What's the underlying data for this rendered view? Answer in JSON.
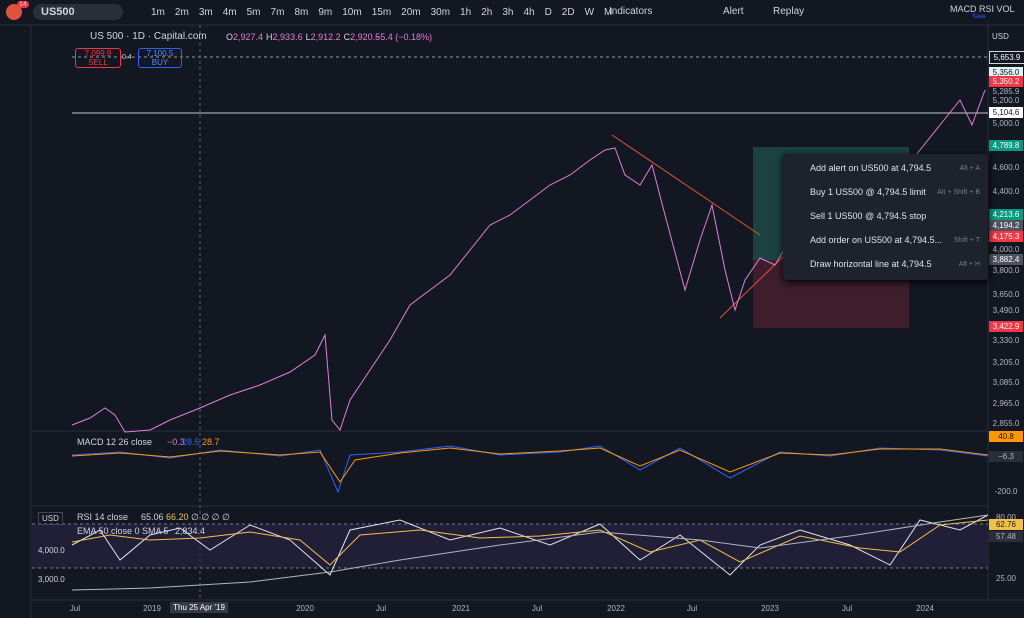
{
  "toolbar": {
    "badge": "14",
    "symbol": "US500",
    "intervals": [
      "1m",
      "2m",
      "3m",
      "4m",
      "5m",
      "7m",
      "8m",
      "9m",
      "10m",
      "15m",
      "20m",
      "30m",
      "1h",
      "2h",
      "3h",
      "4h",
      "D",
      "2D",
      "W",
      "M"
    ],
    "indicators": "Indicators",
    "alert": "Alert",
    "replay": "Replay",
    "layout_name": "MACD RSI VOL",
    "save": "Save"
  },
  "legend": {
    "title": "US 500 · 1D · Capital.com",
    "ohlc": [
      {
        "letter": "O",
        "value": "2,927.4"
      },
      {
        "letter": "H",
        "value": "2,933.6"
      },
      {
        "letter": "L",
        "value": "2,912.2"
      },
      {
        "letter": "C",
        "value": "2,920.5"
      }
    ],
    "change": "−5.4 (−0.18%)",
    "sell_price": "7,099.9",
    "sell": "SELL",
    "spread": "0.4",
    "buy_price": "7,100.5",
    "buy": "BUY"
  },
  "price_axis": {
    "currency": "USD",
    "labels": [
      "5,653.9",
      "5,356.0",
      "5,350.2",
      "5,285.9",
      "5,200.0",
      "5,104.6",
      "5,000.0",
      "4,789.8",
      "4,600.0",
      "4,400.0",
      "4,213.6",
      "4,194.2",
      "4,175.3",
      "4,000.0",
      "3,882.4",
      "3,800.0",
      "3,650.0",
      "3,490.0",
      "3,422.9",
      "3,330.0",
      "3,205.0",
      "3,085.0",
      "2,965.0",
      "2,855.0"
    ]
  },
  "context_menu": {
    "items": [
      {
        "label": "Add alert on US500 at 4,794.5",
        "shortcut": "Alt + A"
      },
      {
        "label": "Buy 1 US500 @ 4,794.5 limit",
        "shortcut": "Alt + Shift + B"
      },
      {
        "label": "Sell 1 US500 @ 4,794.5 stop"
      },
      {
        "label": "Add order on US500 at 4,794.5...",
        "shortcut": "Shift + T"
      },
      {
        "label": "Draw horizontal line at 4,794.5",
        "shortcut": "Alt + H"
      }
    ]
  },
  "macd": {
    "label": "MACD 12 26 close",
    "values": [
      "−0.3",
      "28.5",
      "28.7"
    ],
    "axis": [
      "40.8",
      "−6.3",
      "-200.0"
    ]
  },
  "rsi": {
    "currency": "USD",
    "label": "RSI 14 close",
    "values": [
      "65.06",
      "66.20",
      "∅ ∅ ∅ ∅"
    ],
    "ema_label": "EMA 50 close 0 SMA 5",
    "ema_value": "2,834.4",
    "left_axis": [
      "4,000.0",
      "3,000.0"
    ],
    "axis": [
      "80.00",
      "62.76",
      "57.48",
      "25.00"
    ]
  },
  "time_axis": {
    "labels": [
      "Jul",
      "2019",
      "Thu 25 Apr '19",
      "2020",
      "Jul",
      "2021",
      "Jul",
      "2022",
      "Jul",
      "2023",
      "Jul",
      "2024"
    ]
  }
}
